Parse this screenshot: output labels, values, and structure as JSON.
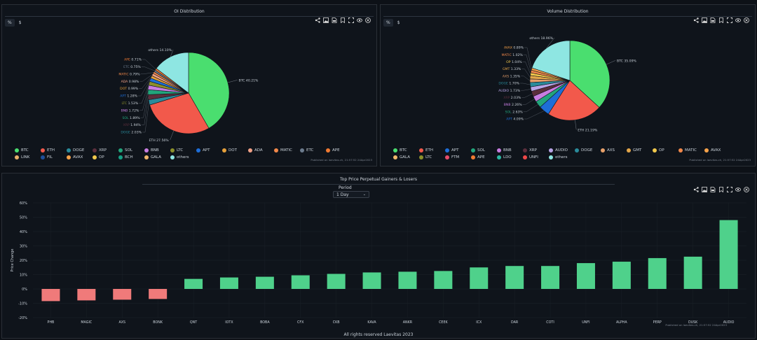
{
  "colors": {
    "BTC": "#4ade6f",
    "ETH": "#f2594b",
    "DOGE": "#2a8b9b",
    "XRP": "#5b2e3c",
    "SOL": "#22a57c",
    "BNB": "#c77de0",
    "LTC": "#8b8f2a",
    "APT": "#1e6ed8",
    "DOT": "#e6a03a",
    "ADA": "#f1a187",
    "MATIC": "#f2884a",
    "ETC": "#6b7a8c",
    "APE": "#f07a32",
    "LINK": "#e8b06a",
    "FIL": "#1f4f9a",
    "AVAX": "#f6a24a",
    "OP": "#f2c94c",
    "BCH": "#16a085",
    "GALA": "#f0b76b",
    "others": "#8ee6e2",
    "FTM": "#e84c6a",
    "UNFI": "#f04848",
    "AUDIO": "#b8a4e6",
    "LDO": "#2bb7a3",
    "AXS": "#e8a06a",
    "GMT": "#e3a64a",
    "positive_bar": "#4fd18b",
    "negative_bar": "#f07a7a"
  },
  "toolbar_icons": [
    "share-icon",
    "image-icon",
    "pdf-icon",
    "bookmark-icon",
    "fullscreen-icon",
    "eye-icon",
    "close-icon"
  ],
  "toggle": {
    "percent": "%",
    "dollar": "$"
  },
  "chart_data": [
    {
      "type": "pie",
      "title": "OI Distribution",
      "slices": [
        {
          "label": "BTC",
          "value": 40.21
        },
        {
          "label": "ETH",
          "value": 27.56
        },
        {
          "label": "DOGE",
          "value": 2.03
        },
        {
          "label": "XRP",
          "value": 1.94
        },
        {
          "label": "SOL",
          "value": 1.89
        },
        {
          "label": "BNB",
          "value": 1.72
        },
        {
          "label": "LTC",
          "value": 1.53
        },
        {
          "label": "APT",
          "value": 1.28
        },
        {
          "label": "DOT",
          "value": 0.99
        },
        {
          "label": "ADA",
          "value": 0.98
        },
        {
          "label": "MATIC",
          "value": 0.79
        },
        {
          "label": "ETC",
          "value": 0.75
        },
        {
          "label": "APE",
          "value": 0.71
        },
        {
          "label": "others",
          "value": 14.1
        }
      ],
      "slice_labels": {
        "BTC": "BTC 40.21%",
        "ETH": "ETH 27.56%",
        "DOGE": "DOGE 2.03%",
        "XRP": "XRP 1.94%",
        "SOL": "SOL 1.89%",
        "BNB": "BNB 1.72%",
        "LTC": "LTC 1.53%",
        "APT": "APT 1.28%",
        "DOT": "DOT 0.99%",
        "ADA": "ADA 0.98%",
        "MATIC": "MATIC 0.79%",
        "ETC": "ETC 0.75%",
        "APE": "APE 0.71%",
        "others": "others 14.10%"
      },
      "legend": [
        "BTC",
        "ETH",
        "DOGE",
        "XRP",
        "SOL",
        "BNB",
        "LTC",
        "APT",
        "DOT",
        "ADA",
        "MATIC",
        "ETC",
        "APE",
        "LINK",
        "FIL",
        "AVAX",
        "OP",
        "BCH",
        "GALA",
        "others"
      ],
      "published": "Published on laevitas.ch, 21:57:52 24Apr2023"
    },
    {
      "type": "pie",
      "title": "Volume Distribution",
      "slices": [
        {
          "label": "BTC",
          "value": 35.09
        },
        {
          "label": "ETH",
          "value": 21.19
        },
        {
          "label": "APT",
          "value": 4.09
        },
        {
          "label": "SOL",
          "value": 2.63
        },
        {
          "label": "BNB",
          "value": 2.26
        },
        {
          "label": "XRP",
          "value": 2.03
        },
        {
          "label": "AUDIO",
          "value": 1.73
        },
        {
          "label": "DOGE",
          "value": 1.7
        },
        {
          "label": "AXS",
          "value": 1.35
        },
        {
          "label": "GMT",
          "value": 1.33
        },
        {
          "label": "OP",
          "value": 1.04
        },
        {
          "label": "MATIC",
          "value": 1.02
        },
        {
          "label": "AVAX",
          "value": 0.89
        },
        {
          "label": "others",
          "value": 18.96
        }
      ],
      "slice_labels": {
        "BTC": "BTC 35.09%",
        "ETH": "ETH 21.19%",
        "APT": "APT 4.09%",
        "SOL": "SOL 2.63%",
        "BNB": "BNB 2.26%",
        "XRP": "XRP 2.03%",
        "AUDIO": "AUDIO 1.73%",
        "DOGE": "DOGE 1.70%",
        "AXS": "AXS 1.35%",
        "GMT": "GMT 1.33%",
        "OP": "OP 1.04%",
        "MATIC": "MATIC 1.02%",
        "AVAX": "AVAX 0.89%",
        "others": "others 18.96%"
      },
      "legend": [
        "BTC",
        "ETH",
        "APT",
        "SOL",
        "BNB",
        "XRP",
        "AUDIO",
        "DOGE",
        "AXS",
        "GMT",
        "OP",
        "MATIC",
        "AVAX",
        "GALA",
        "LTC",
        "FTM",
        "APE",
        "LDO",
        "UNFI",
        "others"
      ],
      "published": "Published on laevitas.ch, 21:57:52 24Apr2023"
    },
    {
      "type": "bar",
      "title": "Top Price Perpetual Gainers & Losers",
      "categories": [
        "PHB",
        "MAGIC",
        "AXS",
        "BONK",
        "QNT",
        "IOTX",
        "BOBA",
        "CFX",
        "CKB",
        "KAVA",
        "ANKR",
        "CEEK",
        "ICX",
        "DAR",
        "COTI",
        "UNFI",
        "ALPHA",
        "PERP",
        "DUSK",
        "AUDIO"
      ],
      "values": [
        -8.5,
        -8,
        -7.5,
        -7,
        7,
        8,
        8.5,
        9.5,
        10.5,
        11.5,
        12,
        12.5,
        15,
        16,
        16,
        18,
        19,
        21.5,
        22.5,
        48
      ],
      "ylabel": "Price Change",
      "ylim": [
        -20,
        60
      ],
      "yticks": [
        "-20%",
        "-10%",
        "0%",
        "10%",
        "20%",
        "30%",
        "40%",
        "50%",
        "60%"
      ],
      "ytick_values": [
        -20,
        -10,
        0,
        10,
        20,
        30,
        40,
        50,
        60
      ],
      "period_label": "Period",
      "period_value": "1 Day",
      "published": "Published on laevitas.ch, 21:57:52 24Apr2023"
    }
  ],
  "footer": "All rights reserved Laevitas 2023"
}
